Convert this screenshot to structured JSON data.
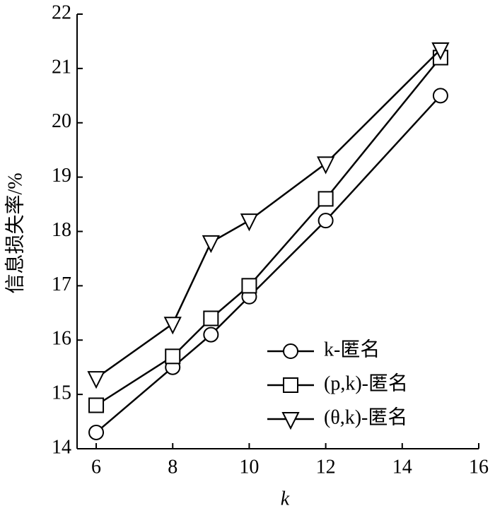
{
  "chart_data": {
    "type": "line",
    "x": [
      6,
      8,
      9,
      10,
      12,
      15
    ],
    "series": [
      {
        "name": "k-匿名",
        "color": "#000000",
        "marker": "circle",
        "values": [
          14.3,
          15.5,
          16.1,
          16.8,
          18.2,
          20.5
        ]
      },
      {
        "name": "(p,k)-匿名",
        "color": "#000000",
        "marker": "square",
        "values": [
          14.8,
          15.7,
          16.4,
          17.0,
          18.6,
          21.2
        ]
      },
      {
        "name": "(θ,k)-匿名",
        "color": "#000000",
        "marker": "triangle-down",
        "values": [
          15.3,
          16.3,
          17.8,
          18.2,
          19.25,
          21.35
        ]
      }
    ],
    "xlabel": "k",
    "ylabel": "信息损失率/%",
    "xlim": [
      5.5,
      16
    ],
    "xticks": [
      6,
      8,
      10,
      12,
      14,
      16
    ],
    "ylim": [
      14,
      22
    ],
    "yticks": [
      14,
      15,
      16,
      17,
      18,
      19,
      20,
      21,
      22
    ],
    "legend": "lower right",
    "grid": false
  }
}
